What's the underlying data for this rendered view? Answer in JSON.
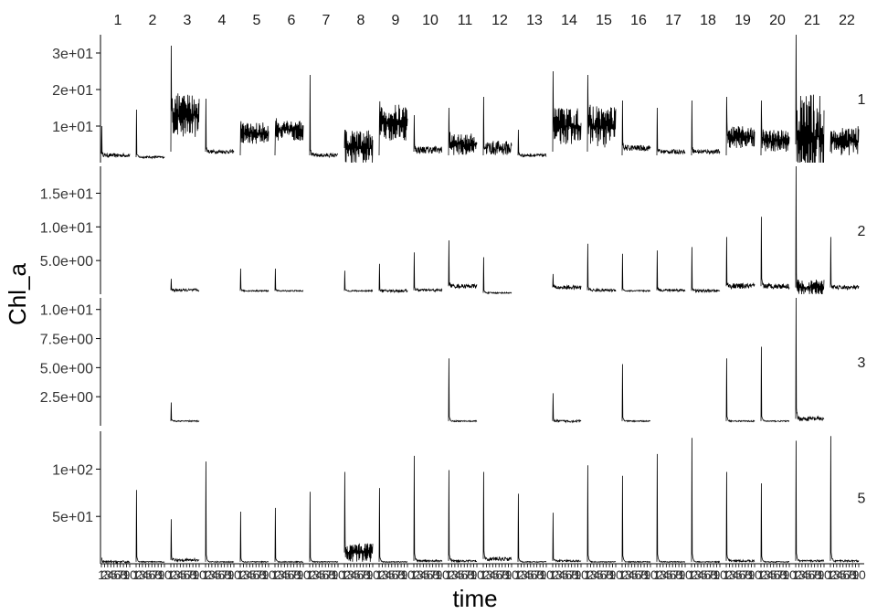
{
  "chart_data": {
    "type": "line",
    "xlabel": "time",
    "ylabel": "Chl_a",
    "facet_cols": [
      "1",
      "2",
      "3",
      "4",
      "5",
      "6",
      "7",
      "8",
      "9",
      "10",
      "11",
      "12",
      "13",
      "14",
      "15",
      "16",
      "17",
      "18",
      "19",
      "20",
      "21",
      "22"
    ],
    "facet_rows": [
      {
        "label": "1",
        "ylim": [
          0,
          35
        ],
        "ticks": [
          10,
          20,
          30
        ],
        "tick_labels": [
          "1e+01",
          "2e+01",
          "3e+01"
        ],
        "series": [
          {
            "start": 2.5,
            "spike": 10,
            "base": 2,
            "noise": 0.5,
            "osc": 0
          },
          {
            "start": 0,
            "spike": 14.5,
            "base": 1.5,
            "noise": 0.3,
            "osc": 0
          },
          {
            "start": 3,
            "spike": 32,
            "base": 13,
            "noise": 3,
            "osc": 1
          },
          {
            "start": 0,
            "spike": 17.5,
            "base": 3,
            "noise": 0.5,
            "osc": 0
          },
          {
            "start": 2,
            "spike": 10,
            "base": 8,
            "noise": 1.5,
            "osc": 1
          },
          {
            "start": 2,
            "spike": 9,
            "base": 9,
            "noise": 1.5,
            "osc": 1
          },
          {
            "start": 0,
            "spike": 24,
            "base": 2,
            "noise": 0.5,
            "osc": 0
          },
          {
            "start": 0,
            "spike": 9,
            "base": 4,
            "noise": 2.5,
            "osc": 1
          },
          {
            "start": 2,
            "spike": 12.5,
            "base": 11,
            "noise": 2.5,
            "osc": 1
          },
          {
            "start": 3,
            "spike": 13,
            "base": 3.5,
            "noise": 1,
            "osc": 0
          },
          {
            "start": 2,
            "spike": 15,
            "base": 5,
            "noise": 1.5,
            "osc": 1
          },
          {
            "start": 2,
            "spike": 18,
            "base": 4,
            "noise": 2,
            "osc": 0
          },
          {
            "start": 0,
            "spike": 9,
            "base": 2,
            "noise": 0.4,
            "osc": 0
          },
          {
            "start": 3,
            "spike": 25,
            "base": 10,
            "noise": 2.5,
            "osc": 1
          },
          {
            "start": 3,
            "spike": 24,
            "base": 10,
            "noise": 3,
            "osc": 1
          },
          {
            "start": 2,
            "spike": 17,
            "base": 4,
            "noise": 0.8,
            "osc": 0
          },
          {
            "start": 2,
            "spike": 15,
            "base": 3,
            "noise": 0.6,
            "osc": 0
          },
          {
            "start": 2,
            "spike": 17,
            "base": 3,
            "noise": 0.6,
            "osc": 0
          },
          {
            "start": 2,
            "spike": 18,
            "base": 7,
            "noise": 1.5,
            "osc": 1
          },
          {
            "start": 2,
            "spike": 17,
            "base": 6,
            "noise": 1.5,
            "osc": 1
          },
          {
            "start": 5,
            "spike": 35,
            "base": 7,
            "noise": 6,
            "osc": 1
          },
          {
            "start": 3,
            "spike": 8,
            "base": 6,
            "noise": 2,
            "osc": 1
          }
        ]
      },
      {
        "label": "2",
        "ylim": [
          0,
          19
        ],
        "ticks": [
          5,
          10,
          15
        ],
        "tick_labels": [
          "5.0e+00",
          "1.0e+01",
          "1.5e+01"
        ],
        "series": [
          null,
          null,
          {
            "start": 0,
            "spike": 2.3,
            "base": 0.6,
            "noise": 0.2,
            "osc": 0
          },
          null,
          {
            "start": 0,
            "spike": 3.8,
            "base": 0.5,
            "noise": 0.1,
            "osc": 0
          },
          {
            "start": 0,
            "spike": 3.8,
            "base": 0.5,
            "noise": 0.1,
            "osc": 0
          },
          null,
          {
            "start": 0,
            "spike": 3.5,
            "base": 0.5,
            "noise": 0.1,
            "osc": 0
          },
          {
            "start": 0,
            "spike": 4.5,
            "base": 0.5,
            "noise": 0.2,
            "osc": 0
          },
          {
            "start": 0,
            "spike": 6.2,
            "base": 0.6,
            "noise": 0.2,
            "osc": 0
          },
          {
            "start": 0,
            "spike": 8,
            "base": 1.2,
            "noise": 0.3,
            "osc": 0
          },
          {
            "start": 0,
            "spike": 5.5,
            "base": 0.2,
            "noise": 0.1,
            "osc": 0
          },
          null,
          {
            "start": 0,
            "spike": 3,
            "base": 1,
            "noise": 0.3,
            "osc": 0
          },
          {
            "start": 0,
            "spike": 7.5,
            "base": 0.6,
            "noise": 0.2,
            "osc": 0
          },
          {
            "start": 0,
            "spike": 6,
            "base": 0.5,
            "noise": 0.1,
            "osc": 0
          },
          {
            "start": 0,
            "spike": 6.5,
            "base": 0.6,
            "noise": 0.2,
            "osc": 0
          },
          {
            "start": 0,
            "spike": 7,
            "base": 0.5,
            "noise": 0.2,
            "osc": 0
          },
          {
            "start": 0,
            "spike": 8.5,
            "base": 1.2,
            "noise": 0.4,
            "osc": 0
          },
          {
            "start": 0,
            "spike": 11.5,
            "base": 1.2,
            "noise": 0.4,
            "osc": 0
          },
          {
            "start": 0,
            "spike": 19,
            "base": 1,
            "noise": 0.6,
            "osc": 1
          },
          {
            "start": 0,
            "spike": 8.5,
            "base": 1,
            "noise": 0.3,
            "osc": 0
          }
        ]
      },
      {
        "label": "3",
        "ylim": [
          0,
          11
        ],
        "ticks": [
          2.5,
          5,
          7.5,
          10
        ],
        "tick_labels": [
          "2.5e+00",
          "5.0e+00",
          "7.5e+00",
          "1.0e+01"
        ],
        "series": [
          null,
          null,
          {
            "start": 0,
            "spike": 2,
            "base": 0.4,
            "noise": 0.05,
            "osc": 0
          },
          null,
          null,
          null,
          null,
          null,
          null,
          null,
          {
            "start": 0,
            "spike": 5.8,
            "base": 0.4,
            "noise": 0.05,
            "osc": 0
          },
          null,
          null,
          {
            "start": 0,
            "spike": 2.8,
            "base": 0.4,
            "noise": 0.1,
            "osc": 0
          },
          null,
          {
            "start": 0,
            "spike": 5.3,
            "base": 0.4,
            "noise": 0.05,
            "osc": 0
          },
          null,
          null,
          {
            "start": 0,
            "spike": 5.8,
            "base": 0.4,
            "noise": 0.05,
            "osc": 0
          },
          {
            "start": 0,
            "spike": 6.8,
            "base": 0.4,
            "noise": 0.05,
            "osc": 0
          },
          {
            "start": 0,
            "spike": 11,
            "base": 0.6,
            "noise": 0.2,
            "osc": 0
          },
          null
        ]
      },
      {
        "label": "5",
        "ylim": [
          0,
          140
        ],
        "ticks": [
          50,
          100
        ],
        "tick_labels": [
          "5e+01",
          "1e+02"
        ],
        "series": [
          {
            "start": 6,
            "spike": 6,
            "base": 2,
            "noise": 1.2,
            "osc": 0
          },
          {
            "start": 0,
            "spike": 78,
            "base": 2,
            "noise": 0.5,
            "osc": 0
          },
          {
            "start": 0,
            "spike": 47,
            "base": 4,
            "noise": 1.5,
            "osc": 0
          },
          {
            "start": 0,
            "spike": 108,
            "base": 2,
            "noise": 0.5,
            "osc": 0
          },
          {
            "start": 0,
            "spike": 55,
            "base": 2,
            "noise": 0.5,
            "osc": 0
          },
          {
            "start": 0,
            "spike": 59,
            "base": 2,
            "noise": 0.5,
            "osc": 0
          },
          {
            "start": 0,
            "spike": 76,
            "base": 2,
            "noise": 0.5,
            "osc": 0
          },
          {
            "start": 0,
            "spike": 97,
            "base": 12,
            "noise": 5,
            "osc": 1
          },
          {
            "start": 0,
            "spike": 80,
            "base": 2,
            "noise": 0.5,
            "osc": 0
          },
          {
            "start": 0,
            "spike": 114,
            "base": 3,
            "noise": 1,
            "osc": 0
          },
          {
            "start": 0,
            "spike": 99,
            "base": 3,
            "noise": 1,
            "osc": 0
          },
          {
            "start": 0,
            "spike": 97,
            "base": 5,
            "noise": 2,
            "osc": 0
          },
          {
            "start": 0,
            "spike": 74,
            "base": 2,
            "noise": 0.5,
            "osc": 0
          },
          {
            "start": 0,
            "spike": 54,
            "base": 3,
            "noise": 1,
            "osc": 0
          },
          {
            "start": 0,
            "spike": 104,
            "base": 2,
            "noise": 0.5,
            "osc": 0
          },
          {
            "start": 0,
            "spike": 93,
            "base": 2,
            "noise": 0.5,
            "osc": 0
          },
          {
            "start": 0,
            "spike": 116,
            "base": 2,
            "noise": 0.5,
            "osc": 0
          },
          {
            "start": 0,
            "spike": 133,
            "base": 2,
            "noise": 0.5,
            "osc": 0
          },
          {
            "start": 0,
            "spike": 97,
            "base": 3,
            "noise": 1,
            "osc": 0
          },
          {
            "start": 0,
            "spike": 85,
            "base": 2,
            "noise": 0.5,
            "osc": 0
          },
          {
            "start": 0,
            "spike": 130,
            "base": 3,
            "noise": 1,
            "osc": 0
          },
          {
            "start": 0,
            "spike": 135,
            "base": 3,
            "noise": 1,
            "osc": 0
          }
        ]
      }
    ],
    "x_tick_labels": [
      "1",
      "2",
      "3",
      "4",
      "5",
      "6",
      "7",
      "8",
      "9",
      "10"
    ],
    "line_color": "#000000",
    "background": "#ffffff",
    "grid": false,
    "legend": "none"
  }
}
